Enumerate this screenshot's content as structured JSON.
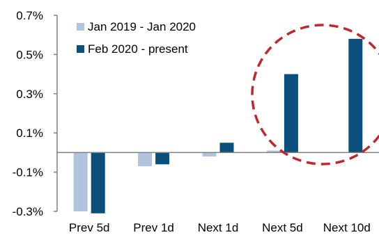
{
  "chart_data": {
    "type": "bar",
    "categories": [
      "Prev 5d",
      "Prev 1d",
      "Next 1d",
      "Next 5d",
      "Next 10d"
    ],
    "series": [
      {
        "name": "Jan 2019 - Jan 2020",
        "values": [
          -0.3,
          -0.07,
          -0.02,
          0.01,
          0.0
        ],
        "color": "#b0c4de"
      },
      {
        "name": "Feb 2020 - present",
        "values": [
          -0.31,
          -0.06,
          0.05,
          0.4,
          0.58
        ],
        "color": "#0b4f7c"
      }
    ],
    "ylim": [
      -0.3,
      0.7
    ],
    "yticks": [
      {
        "value": 0.7,
        "label": "0.7%"
      },
      {
        "value": 0.5,
        "label": "0.5%"
      },
      {
        "value": 0.3,
        "label": "0.3%"
      },
      {
        "value": 0.1,
        "label": "0.1%"
      },
      {
        "value": -0.1,
        "label": "-0.1%"
      },
      {
        "value": -0.3,
        "label": "-0.3%"
      }
    ],
    "grid": false,
    "legend_position": "top-left",
    "annotation": {
      "shape": "dashed-circle",
      "color": "#c0262d",
      "highlights": [
        "Next 5d",
        "Next 10d"
      ]
    }
  }
}
